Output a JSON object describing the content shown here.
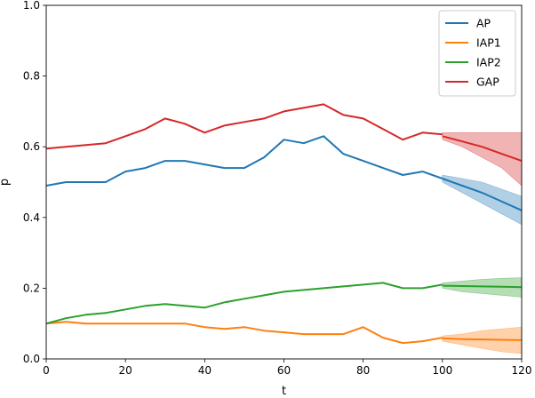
{
  "chart_data": {
    "type": "line",
    "title": "",
    "xlabel": "t",
    "ylabel": "p",
    "xlim": [
      0,
      120
    ],
    "ylim": [
      0,
      1.0
    ],
    "xticks": [
      "0",
      "20",
      "40",
      "60",
      "80",
      "100",
      "120"
    ],
    "yticks": [
      "0.0",
      "0.2",
      "0.4",
      "0.6",
      "0.8",
      "1.0"
    ],
    "grid": false,
    "legend_position": "top-right",
    "history_x": [
      0,
      5,
      10,
      15,
      20,
      25,
      30,
      35,
      40,
      45,
      50,
      55,
      60,
      65,
      70,
      75,
      80,
      85,
      90,
      95,
      100
    ],
    "forecast_x": [
      100,
      105,
      110,
      115,
      120
    ],
    "series": [
      {
        "name": "AP",
        "color": "#1f77b4",
        "values": [
          0.49,
          0.5,
          0.5,
          0.5,
          0.53,
          0.54,
          0.56,
          0.56,
          0.55,
          0.54,
          0.54,
          0.57,
          0.62,
          0.61,
          0.63,
          0.58,
          0.56,
          0.54,
          0.52,
          0.53,
          0.51
        ],
        "forecast": [
          0.51,
          0.49,
          0.47,
          0.445,
          0.42
        ],
        "forecast_band_lower": [
          0.5,
          0.47,
          0.44,
          0.41,
          0.38
        ],
        "forecast_band_upper": [
          0.52,
          0.51,
          0.5,
          0.48,
          0.46
        ]
      },
      {
        "name": "IAP1",
        "color": "#ff7f0e",
        "values": [
          0.1,
          0.105,
          0.1,
          0.1,
          0.1,
          0.1,
          0.1,
          0.1,
          0.09,
          0.085,
          0.09,
          0.08,
          0.075,
          0.07,
          0.07,
          0.07,
          0.09,
          0.06,
          0.045,
          0.05,
          0.06
        ],
        "forecast": [
          0.058,
          0.056,
          0.055,
          0.054,
          0.053
        ],
        "forecast_band_lower": [
          0.05,
          0.04,
          0.03,
          0.02,
          0.015
        ],
        "forecast_band_upper": [
          0.065,
          0.07,
          0.08,
          0.085,
          0.09
        ]
      },
      {
        "name": "IAP2",
        "color": "#2ca02c",
        "values": [
          0.1,
          0.115,
          0.125,
          0.13,
          0.14,
          0.15,
          0.155,
          0.15,
          0.145,
          0.16,
          0.17,
          0.18,
          0.19,
          0.195,
          0.2,
          0.205,
          0.21,
          0.215,
          0.2,
          0.2,
          0.21
        ],
        "forecast": [
          0.207,
          0.206,
          0.205,
          0.204,
          0.203
        ],
        "forecast_band_lower": [
          0.2,
          0.19,
          0.185,
          0.18,
          0.175
        ],
        "forecast_band_upper": [
          0.215,
          0.22,
          0.225,
          0.228,
          0.23
        ]
      },
      {
        "name": "GAP",
        "color": "#d62728",
        "values": [
          0.595,
          0.6,
          0.605,
          0.61,
          0.63,
          0.65,
          0.68,
          0.665,
          0.64,
          0.66,
          0.67,
          0.68,
          0.7,
          0.71,
          0.72,
          0.69,
          0.68,
          0.65,
          0.62,
          0.64,
          0.635
        ],
        "forecast": [
          0.63,
          0.615,
          0.6,
          0.58,
          0.56
        ],
        "forecast_band_lower": [
          0.62,
          0.6,
          0.57,
          0.54,
          0.49
        ],
        "forecast_band_upper": [
          0.64,
          0.64,
          0.64,
          0.64,
          0.64
        ]
      }
    ]
  }
}
